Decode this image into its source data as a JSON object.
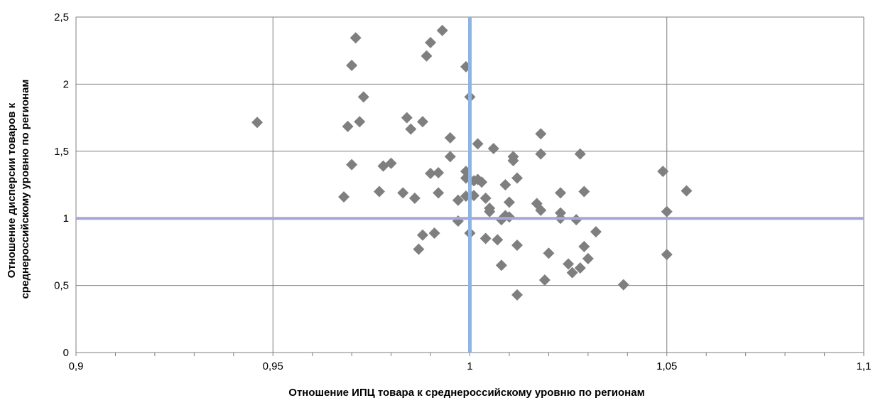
{
  "chart_data": {
    "type": "scatter",
    "xlabel": "Отношение ИПЦ товара к среднероссийскому уровню по регионам",
    "ylabel_lines": [
      "Отношение дисперсии товаров к",
      "среднероссийскому уровню по регионам"
    ],
    "xlim": [
      0.9,
      1.1
    ],
    "ylim": [
      0,
      2.5
    ],
    "x_ticks": [
      0.9,
      0.95,
      1,
      1.05,
      1.1
    ],
    "x_tick_labels": [
      "0,9",
      "0,95",
      "1",
      "1,05",
      "1,1"
    ],
    "y_ticks": [
      0,
      0.5,
      1,
      1.5,
      2,
      2.5
    ],
    "y_tick_labels": [
      "0",
      "0,5",
      "1",
      "1,5",
      "2",
      "2,5"
    ],
    "grid": true,
    "reference_lines": {
      "x": 1,
      "y": 1,
      "x_color": "#8DB4E2",
      "y_color": "#A6A6D9"
    },
    "marker": {
      "shape": "diamond",
      "color": "#7F7F7F"
    },
    "points": [
      [
        0.946,
        1.715
      ],
      [
        0.968,
        1.16
      ],
      [
        0.969,
        1.685
      ],
      [
        0.97,
        1.4
      ],
      [
        0.97,
        2.14
      ],
      [
        0.971,
        2.345
      ],
      [
        0.972,
        1.72
      ],
      [
        0.973,
        1.905
      ],
      [
        0.977,
        1.2
      ],
      [
        0.978,
        1.39
      ],
      [
        0.98,
        1.41
      ],
      [
        0.983,
        1.19
      ],
      [
        0.984,
        1.75
      ],
      [
        0.985,
        1.665
      ],
      [
        0.986,
        1.15
      ],
      [
        0.987,
        0.77
      ],
      [
        0.988,
        0.875
      ],
      [
        0.988,
        1.72
      ],
      [
        0.989,
        2.21
      ],
      [
        0.99,
        2.31
      ],
      [
        0.99,
        1.335
      ],
      [
        0.991,
        0.89
      ],
      [
        0.992,
        1.34
      ],
      [
        0.992,
        1.19
      ],
      [
        0.993,
        2.4
      ],
      [
        0.995,
        1.6
      ],
      [
        0.995,
        1.46
      ],
      [
        0.997,
        0.98
      ],
      [
        0.997,
        1.135
      ],
      [
        0.999,
        1.165
      ],
      [
        0.999,
        1.3
      ],
      [
        0.999,
        1.35
      ],
      [
        0.999,
        2.13
      ],
      [
        1.0,
        1.905
      ],
      [
        1.0,
        0.89
      ],
      [
        1.001,
        1.17
      ],
      [
        1.001,
        1.28
      ],
      [
        1.002,
        1.555
      ],
      [
        1.002,
        1.29
      ],
      [
        1.003,
        1.27
      ],
      [
        1.004,
        1.15
      ],
      [
        1.004,
        0.85
      ],
      [
        1.005,
        1.05
      ],
      [
        1.005,
        1.075
      ],
      [
        1.006,
        1.52
      ],
      [
        1.007,
        0.84
      ],
      [
        1.008,
        0.99
      ],
      [
        1.008,
        0.65
      ],
      [
        1.009,
        1.02
      ],
      [
        1.009,
        1.25
      ],
      [
        1.01,
        1.12
      ],
      [
        1.01,
        1.01
      ],
      [
        1.011,
        1.46
      ],
      [
        1.011,
        1.43
      ],
      [
        1.012,
        0.8
      ],
      [
        1.012,
        1.3
      ],
      [
        1.012,
        0.43
      ],
      [
        1.017,
        1.11
      ],
      [
        1.018,
        1.48
      ],
      [
        1.018,
        1.63
      ],
      [
        1.018,
        1.06
      ],
      [
        1.019,
        0.54
      ],
      [
        1.02,
        0.74
      ],
      [
        1.023,
        1.19
      ],
      [
        1.023,
        1.04
      ],
      [
        1.023,
        1.0
      ],
      [
        1.025,
        0.66
      ],
      [
        1.026,
        0.595
      ],
      [
        1.027,
        0.99
      ],
      [
        1.028,
        1.48
      ],
      [
        1.028,
        0.63
      ],
      [
        1.029,
        1.2
      ],
      [
        1.029,
        0.79
      ],
      [
        1.03,
        0.7
      ],
      [
        1.032,
        0.9
      ],
      [
        1.039,
        0.505
      ],
      [
        1.049,
        1.35
      ],
      [
        1.05,
        1.05
      ],
      [
        1.05,
        0.73
      ],
      [
        1.055,
        1.205
      ]
    ]
  }
}
